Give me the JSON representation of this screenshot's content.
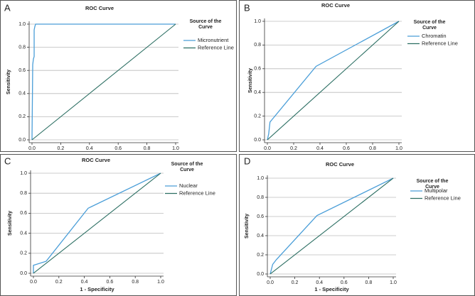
{
  "chart_data": [
    {
      "type": "line",
      "label": "A",
      "title": "ROC Curve",
      "y_label": "Sensitivity",
      "legend_title": "Source of the Curve",
      "series": [
        {
          "name": "Micronutrient",
          "color": "#4a9ed8",
          "x": [
            0,
            0.005,
            0.01,
            0.015,
            0.015,
            0.02,
            0.025,
            1
          ],
          "values": [
            0,
            0.65,
            0.7,
            0.72,
            0.95,
            0.98,
            1,
            1
          ]
        },
        {
          "name": "Reference Line",
          "color": "#2b6e62",
          "x": [
            0,
            1
          ],
          "values": [
            0,
            1
          ]
        }
      ],
      "xlim": [
        0,
        1
      ],
      "ylim": [
        0,
        1
      ],
      "xticks": [
        {
          "value": 0,
          "label": "0.0"
        },
        0.2,
        0.4,
        0.6,
        0.8,
        {
          "value": 1,
          "label": "1.0"
        }
      ],
      "yticks": [
        {
          "value": 0,
          "label": "0.0"
        },
        0.2,
        0.4,
        0.6,
        0.8,
        {
          "value": 1,
          "label": "1.0"
        }
      ],
      "grid": true
    },
    {
      "type": "line",
      "label": "B",
      "title": "ROC Curve",
      "y_label": "Sensitivity",
      "legend_title": "Source of the Curve",
      "series": [
        {
          "name": "Chromatin",
          "color": "#4a9ed8",
          "x": [
            0,
            0.01,
            0.02,
            0.37,
            1
          ],
          "values": [
            0,
            0.05,
            0.15,
            0.62,
            1
          ]
        },
        {
          "name": "Reference Line",
          "color": "#2b6e62",
          "x": [
            0,
            1
          ],
          "values": [
            0,
            1
          ]
        }
      ],
      "xlim": [
        0,
        1
      ],
      "ylim": [
        0,
        1
      ],
      "xticks": [
        {
          "value": 0,
          "label": "0.0"
        },
        0.2,
        0.4,
        0.6,
        0.8,
        {
          "value": 1,
          "label": "1.0"
        }
      ],
      "yticks": [
        {
          "value": 0,
          "label": "0.0"
        },
        0.2,
        0.4,
        0.6,
        0.8,
        {
          "value": 1,
          "label": "1.0"
        }
      ],
      "grid": true
    },
    {
      "type": "line",
      "label": "C",
      "title": "ROC Curve",
      "x_label": "1 - Specificity",
      "y_label": "Sensitivity",
      "legend_title": "Source of the Curve",
      "series": [
        {
          "name": "Nuclear",
          "color": "#4a9ed8",
          "x": [
            0,
            0,
            0.1,
            0.43,
            1
          ],
          "values": [
            0,
            0.08,
            0.12,
            0.65,
            1
          ]
        },
        {
          "name": "Reference Line",
          "color": "#2b6e62",
          "x": [
            0,
            1
          ],
          "values": [
            0,
            1
          ]
        }
      ],
      "xlim": [
        0,
        1
      ],
      "ylim": [
        0,
        1
      ],
      "xticks": [
        {
          "value": 0,
          "label": "0.0"
        },
        0.2,
        0.4,
        0.6,
        0.8,
        {
          "value": 1,
          "label": "1.0"
        }
      ],
      "yticks": [
        {
          "value": 0,
          "label": "0.0"
        },
        0.2,
        0.4,
        0.6,
        0.8,
        {
          "value": 1,
          "label": "1.0"
        }
      ],
      "grid": true
    },
    {
      "type": "line",
      "label": "D",
      "title": "ROC Curve",
      "x_label": "1 - Specificity",
      "y_label": "Sensitivity",
      "legend_title": "Source of the Curve",
      "series": [
        {
          "name": "Multipolar",
          "color": "#4a9ed8",
          "x": [
            0,
            0.02,
            0.05,
            0.38,
            1
          ],
          "values": [
            0,
            0.1,
            0.15,
            0.61,
            1
          ]
        },
        {
          "name": "Reference Line",
          "color": "#2b6e62",
          "x": [
            0,
            1
          ],
          "values": [
            0,
            1
          ]
        }
      ],
      "xlim": [
        0,
        1
      ],
      "ylim": [
        0,
        1
      ],
      "xticks": [
        {
          "value": 0,
          "label": "0.0"
        },
        0.2,
        0.4,
        0.6,
        0.8,
        {
          "value": 1,
          "label": "1.0"
        }
      ],
      "yticks": [
        {
          "value": 0,
          "label": "0.0"
        },
        0.2,
        0.4,
        0.6,
        0.8,
        {
          "value": 1,
          "label": "1.0"
        }
      ],
      "grid": true
    }
  ]
}
